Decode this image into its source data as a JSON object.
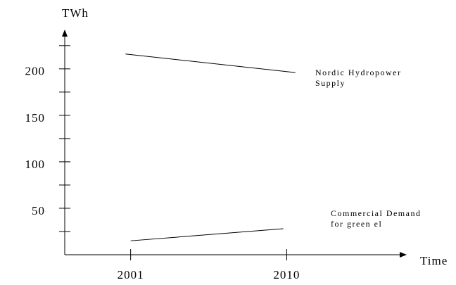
{
  "chart_data": {
    "type": "line",
    "ylabel": "TWh",
    "xlabel": "Time",
    "xlim": [
      1997.2,
      2016.8
    ],
    "xticks": [
      2001,
      2010
    ],
    "ylim": [
      0,
      240
    ],
    "yticks": [
      50,
      100,
      150,
      200
    ],
    "yticks_minor": [
      25,
      75,
      125,
      175,
      225
    ],
    "series": [
      {
        "name": "Nordic Hydropower Supply",
        "color": "#000000",
        "x": [
          2000.7,
          2010.5
        ],
        "values": [
          216,
          196
        ]
      },
      {
        "name": "Commercial Demand for green el",
        "color": "#000000",
        "x": [
          2001,
          2009.8
        ],
        "values": [
          15,
          28
        ]
      }
    ]
  }
}
